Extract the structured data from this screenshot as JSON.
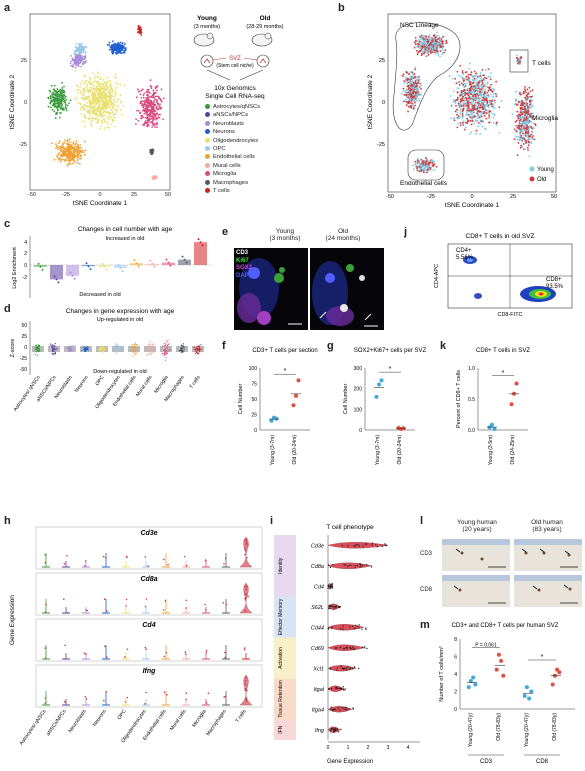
{
  "panels": {
    "a": {
      "label": "a",
      "xlabel": "tSNE Coordinate 1",
      "ylabel": "tSNE Coordinate 2",
      "xticks": [
        "-50",
        "-25",
        "0",
        "25",
        "50"
      ],
      "yticks": [
        "25",
        "0",
        "-25"
      ],
      "schema": {
        "young": "Young",
        "young_age": "(3 months)",
        "old": "Old",
        "old_age": "(28-29 months)",
        "svz": "SVZ",
        "niche": "(Stem cell niche)",
        "method1": "10x Genomics",
        "method2": "Single Cell RNA-seq"
      },
      "legend": [
        {
          "name": "Astrocytes/qNSCs",
          "color": "#3a9a3a"
        },
        {
          "name": "aNSCs/NPCs",
          "color": "#5a3fa0"
        },
        {
          "name": "Neuroblasts",
          "color": "#a88ad8"
        },
        {
          "name": "Neurons",
          "color": "#1f5fd0"
        },
        {
          "name": "Oligodendrocytes",
          "color": "#e8e070"
        },
        {
          "name": "OPC",
          "color": "#9cc8e8"
        },
        {
          "name": "Endothelial cells",
          "color": "#f0a030"
        },
        {
          "name": "Mural cells",
          "color": "#f5a8a0"
        },
        {
          "name": "Microglia",
          "color": "#d84a80"
        },
        {
          "name": "Macrophages",
          "color": "#505868"
        },
        {
          "name": "T cells",
          "color": "#d02020"
        }
      ]
    },
    "b": {
      "label": "b",
      "xlabel": "tSNE Coordinate 1",
      "ylabel": "tSNE Coordinate 2",
      "xticks": [
        "-50",
        "-25",
        "0",
        "25",
        "50"
      ],
      "yticks": [
        "25",
        "0",
        "-25"
      ],
      "annotations": {
        "nsc": "NSC Lineage",
        "tcells": "T cells",
        "microglia": "Microglia",
        "endo": "Endothelial cells"
      },
      "legend": [
        {
          "name": "Young",
          "color": "#7dcbe8"
        },
        {
          "name": "Old",
          "color": "#d03a3a"
        }
      ]
    },
    "c": {
      "label": "c",
      "title": "Changes in cell number with age",
      "ylabel": "Log2 Enrichment",
      "top_text": "Increased in old",
      "bottom_text": "Decreased in old",
      "yticks": [
        "4",
        "2",
        "0",
        "-2"
      ]
    },
    "d": {
      "label": "d",
      "title": "Changes in gene expression with age",
      "ylabel": "Z-score",
      "top_text": "Up-regulated in old",
      "bottom_text": "Down-regulated in old",
      "yticks": [
        "50",
        "25",
        "0",
        "-25",
        "-50"
      ],
      "categories": [
        "Astrocytes/ qNSCs",
        "aNSCs/NPCs",
        "Neuroblasts",
        "Neurons",
        "OPC",
        "Oligodendrocytes",
        "Endothelial cells",
        "Mural cells",
        "Microglia",
        "Macrophages",
        "T cells"
      ]
    },
    "e": {
      "label": "e",
      "young": "Young",
      "young_age": "(3 months)",
      "old": "Old",
      "old_age": "(24 months)",
      "stains": [
        {
          "name": "CD3",
          "color": "#ffffff"
        },
        {
          "name": "Ki67",
          "color": "#40e040"
        },
        {
          "name": "SOX2",
          "color": "#e040e0"
        },
        {
          "name": "DAPI",
          "color": "#4060ff"
        }
      ]
    },
    "f": {
      "label": "f",
      "title": "CD3+ T cells per section",
      "ylabel": "Cell Number",
      "yticks": [
        "100",
        "75",
        "50",
        "25",
        "0"
      ],
      "xticks": [
        "Young (3-7m)",
        "Old (20-24m)"
      ],
      "sig": "*"
    },
    "g": {
      "label": "g",
      "title": "SOX2+Ki67+ cells per SVZ",
      "ylabel": "Cell Number",
      "yticks": [
        "300",
        "200",
        "100",
        "0"
      ],
      "xticks": [
        "Young (3-7m)",
        "Old (20-24m)"
      ],
      "sig": "*"
    },
    "j": {
      "label": "j",
      "title": "CD8+ T cells in old SVZ",
      "cd4": "CD4+",
      "cd4_pct": "5.56%",
      "cd8": "CD8+",
      "cd8_pct": "93.5%",
      "xlabel": "CD8-FITC",
      "ylabel": "CD4-APC"
    },
    "k": {
      "label": "k",
      "title": "CD8+ T cells in SVZ",
      "ylabel": "Percent of CD8+ T cells",
      "yticks": [
        "1.0",
        "0.5",
        "0.0"
      ],
      "xticks": [
        "Young (3-5m)",
        "Old (24-25m)"
      ],
      "sig": "*"
    },
    "h": {
      "label": "h",
      "ylabel": "Gene Expression",
      "genes": [
        "Cd3e",
        "Cd8a",
        "Cd4",
        "Ifng"
      ],
      "categories": [
        "Astrocytes/ qNSCs",
        "aNSCs/NPCs",
        "Neuroblasts",
        "Neurons",
        "OPC",
        "Oligodendrocytes",
        "Endothelial cells",
        "Mural cells",
        "Microglia",
        "Macrophages",
        "T cells"
      ]
    },
    "i": {
      "label": "i",
      "title": "T cell phenotype",
      "xlabel": "Gene Expression",
      "xticks": [
        "0",
        "1",
        "2",
        "3",
        "4"
      ],
      "groups": [
        {
          "name": "Identity",
          "color": "#e8d8f0"
        },
        {
          "name": "Effector Memory",
          "color": "#d8e4f4"
        },
        {
          "name": "Activation",
          "color": "#f8f0c8"
        },
        {
          "name": "Tissue Retention",
          "color": "#f8dcc8"
        },
        {
          "name": "IFN",
          "color": "#f8d8d8"
        }
      ],
      "genes": [
        "Cd3e",
        "Cd8a",
        "Cd4",
        "S62L",
        "Cd44",
        "Cd69",
        "Xcl1",
        "Itgal",
        "Itga4",
        "Ifng"
      ]
    },
    "l": {
      "label": "l",
      "young": "Young human",
      "young_age": "(20 years)",
      "old": "Old human",
      "old_age": "(83 years)",
      "rows": [
        "CD3",
        "CD8"
      ]
    },
    "m": {
      "label": "m",
      "title": "CD3+ and CD8+ T cells per human SVZ",
      "ylabel": "Number of T cells/mm²",
      "yticks": [
        "8",
        "6",
        "4",
        "2",
        "0"
      ],
      "pvalue": "P = 0.061",
      "sig": "*",
      "xticks": [
        "Young (20-47y)",
        "Old (78-83y)",
        "Young (20-47y)",
        "Old (78-83y)"
      ],
      "groups": [
        "CD3",
        "CD8"
      ]
    }
  }
}
